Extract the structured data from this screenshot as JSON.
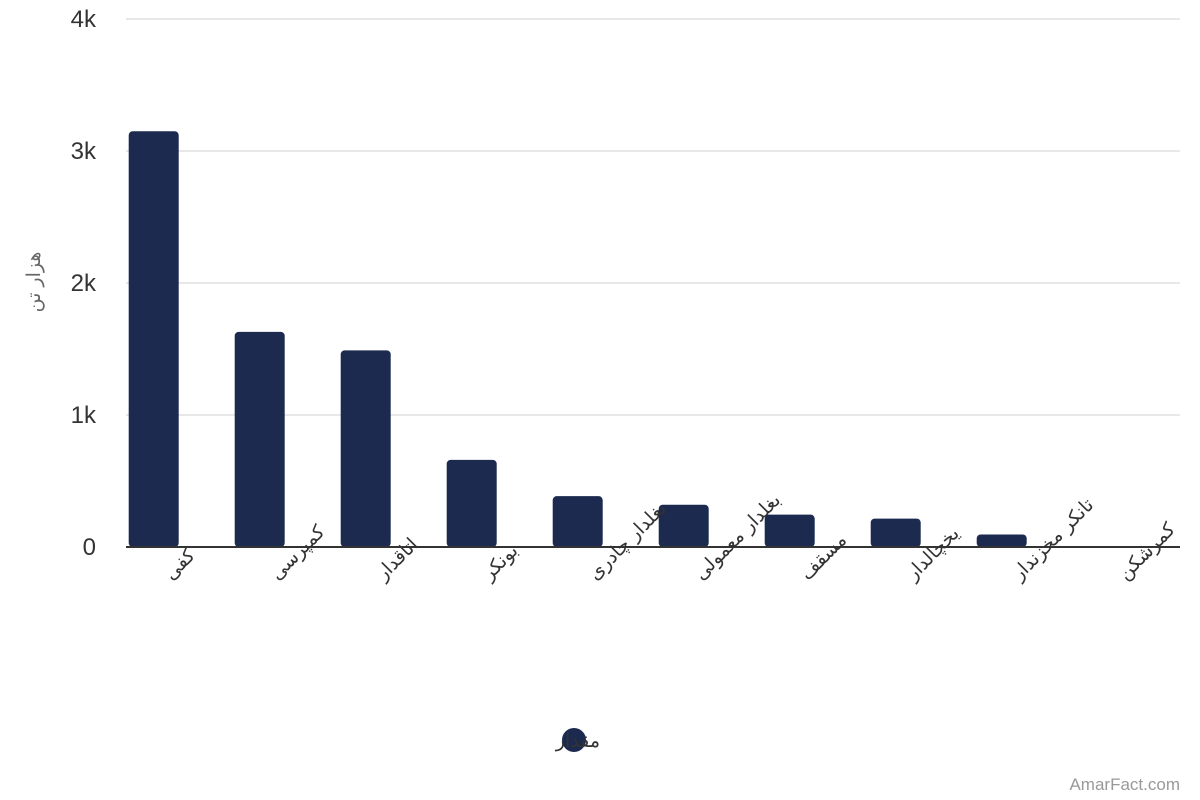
{
  "chart_data": {
    "type": "bar",
    "categories": [
      "کفی",
      "کمپرسی",
      "اتاقدار",
      "بونکر",
      "بغلدار چادری",
      "بغلدار معمولی",
      "مسقف",
      "یخچالدار",
      "تانکر مخزندار",
      "کمرشکن"
    ],
    "series": [
      {
        "name": "مقدار",
        "values": [
          3150,
          1630,
          1490,
          660,
          385,
          320,
          245,
          215,
          95,
          3
        ]
      }
    ],
    "ylabel": "هزار تن",
    "xlabel": "",
    "ylim": [
      0,
      4000
    ],
    "y_ticks": [
      {
        "value": 0,
        "label": "0"
      },
      {
        "value": 1000,
        "label": "1k"
      },
      {
        "value": 2000,
        "label": "2k"
      },
      {
        "value": 3000,
        "label": "3k"
      },
      {
        "value": 4000,
        "label": "4k"
      }
    ],
    "grid": true,
    "legend_position": "bottom-center",
    "bar_color": "#1b2a4e",
    "grid_color": "#e0e0e0",
    "axis_color": "#333333"
  },
  "credit": "AmarFact.com"
}
